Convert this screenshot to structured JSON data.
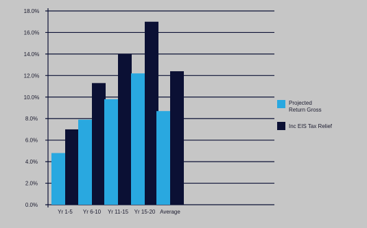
{
  "chart_data": {
    "type": "bar",
    "categories": [
      "Yr 1-5",
      "Yr 6-10",
      "Yr 11-15",
      "Yr 15-20",
      "Average"
    ],
    "series": [
      {
        "name": "Projected Return Gross",
        "values": [
          4.8,
          7.9,
          9.8,
          12.2,
          8.7
        ],
        "color": "#29a8e0"
      },
      {
        "name": "Inc EIS Tax Relief",
        "values": [
          7.0,
          11.3,
          14.0,
          17.0,
          12.4
        ],
        "color": "#0b1034"
      }
    ],
    "yticks": [
      "18.0%",
      "16.0%",
      "14.0%",
      "12.0%",
      "10.0%",
      "8.0%",
      "6.0%",
      "4.0%",
      "2.0%",
      "0.0%"
    ],
    "ylim": [
      0,
      18
    ],
    "grid": true,
    "legend_position": "right"
  }
}
